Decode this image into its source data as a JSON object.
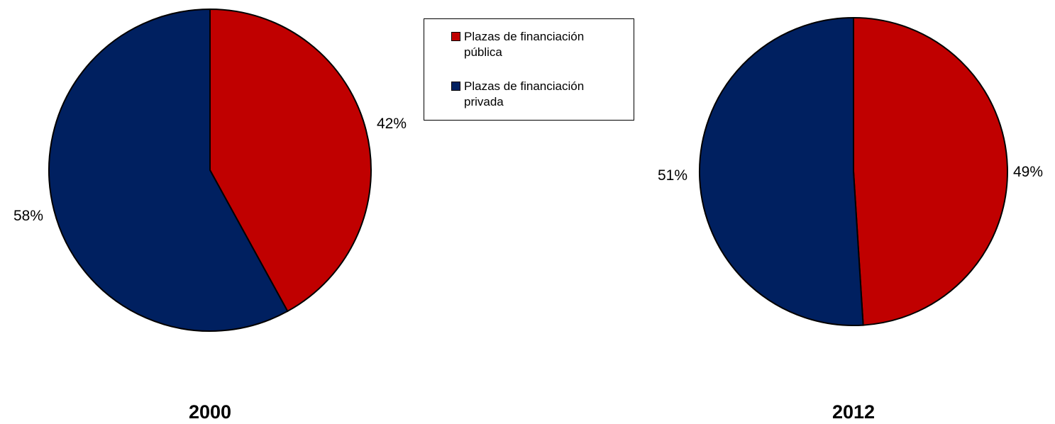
{
  "chart_data": [
    {
      "type": "pie",
      "title": "2000",
      "slices": [
        {
          "label": "Plazas de financiación pública",
          "value": 42,
          "text": "42%",
          "color": "#c00000"
        },
        {
          "label": "Plazas de financiación privada",
          "value": 58,
          "text": "58%",
          "color": "#002060"
        }
      ]
    },
    {
      "type": "pie",
      "title": "2012",
      "slices": [
        {
          "label": "Plazas de financiación pública",
          "value": 49,
          "text": "49%",
          "color": "#c00000"
        },
        {
          "label": "Plazas de financiación privada",
          "value": 51,
          "text": "51%",
          "color": "#002060"
        }
      ]
    }
  ],
  "legend": {
    "placement": "top-center",
    "items": [
      {
        "label": "Plazas de financiación pública",
        "color": "#c00000"
      },
      {
        "label": "Plazas de financiación privada",
        "color": "#002060"
      }
    ]
  }
}
